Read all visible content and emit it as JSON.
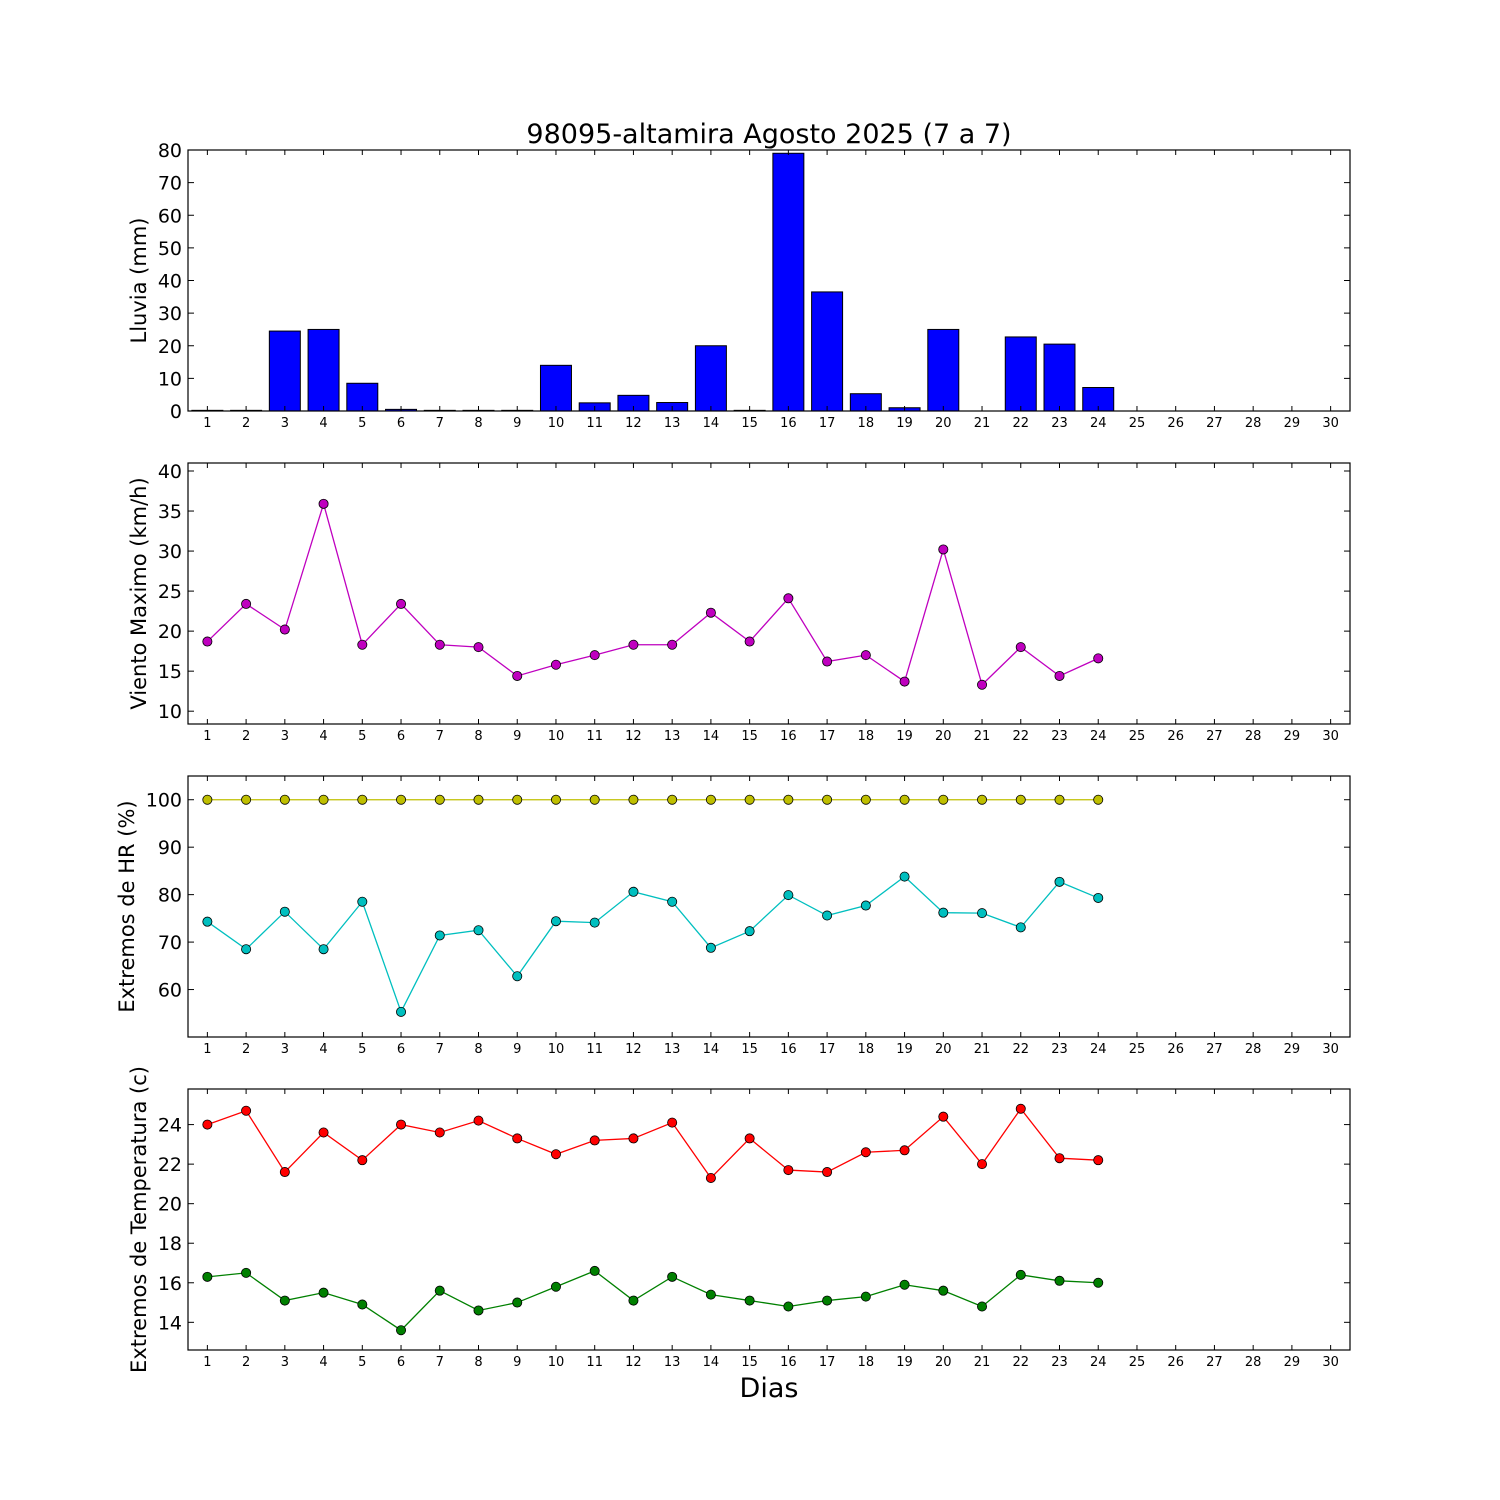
{
  "title": "98095-altamira Agosto 2025  (7 a 7)",
  "xlabel": "Dias",
  "chart_data": [
    {
      "type": "bar",
      "ylabel": "Lluvia (mm)",
      "ylim": [
        0,
        80
      ],
      "yticks": [
        0,
        10,
        20,
        30,
        40,
        50,
        60,
        70,
        80
      ],
      "xlim": [
        0.5,
        30.5
      ],
      "x": [
        1,
        2,
        3,
        4,
        5,
        6,
        7,
        8,
        9,
        10,
        11,
        12,
        13,
        14,
        15,
        16,
        17,
        18,
        19,
        20,
        21,
        22,
        23,
        24,
        25,
        26,
        27,
        28,
        29,
        30
      ],
      "series": [
        {
          "color": "#0000ff",
          "values": [
            0.2,
            0.2,
            24.5,
            25,
            8.5,
            0.5,
            0.2,
            0.2,
            0.2,
            14,
            2.5,
            4.8,
            2.6,
            20,
            0.2,
            79,
            36.5,
            5.3,
            1,
            25,
            0,
            22.7,
            20.5,
            7.2,
            null,
            null,
            null,
            null,
            null,
            null
          ]
        }
      ]
    },
    {
      "type": "line",
      "ylabel": "Viento Maximo (km/h)",
      "ylim": [
        8.4,
        41
      ],
      "yticks": [
        10,
        15,
        20,
        25,
        30,
        35,
        40
      ],
      "xlim": [
        0.5,
        30.5
      ],
      "x": [
        1,
        2,
        3,
        4,
        5,
        6,
        7,
        8,
        9,
        10,
        11,
        12,
        13,
        14,
        15,
        16,
        17,
        18,
        19,
        20,
        21,
        22,
        23,
        24,
        25,
        26,
        27,
        28,
        29,
        30
      ],
      "series": [
        {
          "color": "#bf00bf",
          "values": [
            18.7,
            23.4,
            20.2,
            35.9,
            18.3,
            23.4,
            18.3,
            18,
            14.4,
            15.8,
            17,
            18.3,
            18.3,
            22.3,
            18.7,
            24.1,
            16.2,
            17,
            13.7,
            30.2,
            13.3,
            18,
            14.4,
            16.6,
            null,
            null,
            null,
            null,
            null,
            null
          ]
        }
      ]
    },
    {
      "type": "line",
      "ylabel": "Extremos de HR (%)",
      "ylim": [
        50,
        105
      ],
      "yticks": [
        60,
        70,
        80,
        90,
        100
      ],
      "xlim": [
        0.5,
        30.5
      ],
      "x": [
        1,
        2,
        3,
        4,
        5,
        6,
        7,
        8,
        9,
        10,
        11,
        12,
        13,
        14,
        15,
        16,
        17,
        18,
        19,
        20,
        21,
        22,
        23,
        24,
        25,
        26,
        27,
        28,
        29,
        30
      ],
      "series": [
        {
          "color": "#bfbf00",
          "values": [
            100,
            100,
            100,
            100,
            100,
            100,
            100,
            100,
            100,
            100,
            100,
            100,
            100,
            100,
            100,
            100,
            100,
            100,
            100,
            100,
            100,
            100,
            100,
            100,
            null,
            null,
            null,
            null,
            null,
            null
          ]
        },
        {
          "color": "#00bfbf",
          "values": [
            74.3,
            68.5,
            76.4,
            68.5,
            78.5,
            55.3,
            71.4,
            72.5,
            62.8,
            74.4,
            74.1,
            80.6,
            78.5,
            68.8,
            72.3,
            79.9,
            75.6,
            77.7,
            83.8,
            76.2,
            76.1,
            73.1,
            82.7,
            79.3,
            null,
            null,
            null,
            null,
            null,
            null
          ]
        }
      ]
    },
    {
      "type": "line",
      "ylabel": "Extremos de Temperatura (c)",
      "ylim": [
        12.6,
        25.8
      ],
      "yticks": [
        14,
        16,
        18,
        20,
        22,
        24
      ],
      "xlim": [
        0.5,
        30.5
      ],
      "x": [
        1,
        2,
        3,
        4,
        5,
        6,
        7,
        8,
        9,
        10,
        11,
        12,
        13,
        14,
        15,
        16,
        17,
        18,
        19,
        20,
        21,
        22,
        23,
        24,
        25,
        26,
        27,
        28,
        29,
        30
      ],
      "series": [
        {
          "color": "#ff0000",
          "values": [
            24,
            24.7,
            21.6,
            23.6,
            22.2,
            24,
            23.6,
            24.2,
            23.3,
            22.5,
            23.2,
            23.3,
            24.1,
            21.3,
            23.3,
            21.7,
            21.6,
            22.6,
            22.7,
            24.4,
            22,
            24.8,
            22.3,
            22.2,
            null,
            null,
            null,
            null,
            null,
            null
          ]
        },
        {
          "color": "#008000",
          "values": [
            16.3,
            16.5,
            15.1,
            15.5,
            14.9,
            13.6,
            15.6,
            14.6,
            15,
            15.8,
            16.6,
            15.1,
            16.3,
            15.4,
            15.1,
            14.8,
            15.1,
            15.3,
            15.9,
            15.6,
            14.8,
            16.4,
            16.1,
            16,
            null,
            null,
            null,
            null,
            null,
            null
          ]
        }
      ]
    }
  ]
}
